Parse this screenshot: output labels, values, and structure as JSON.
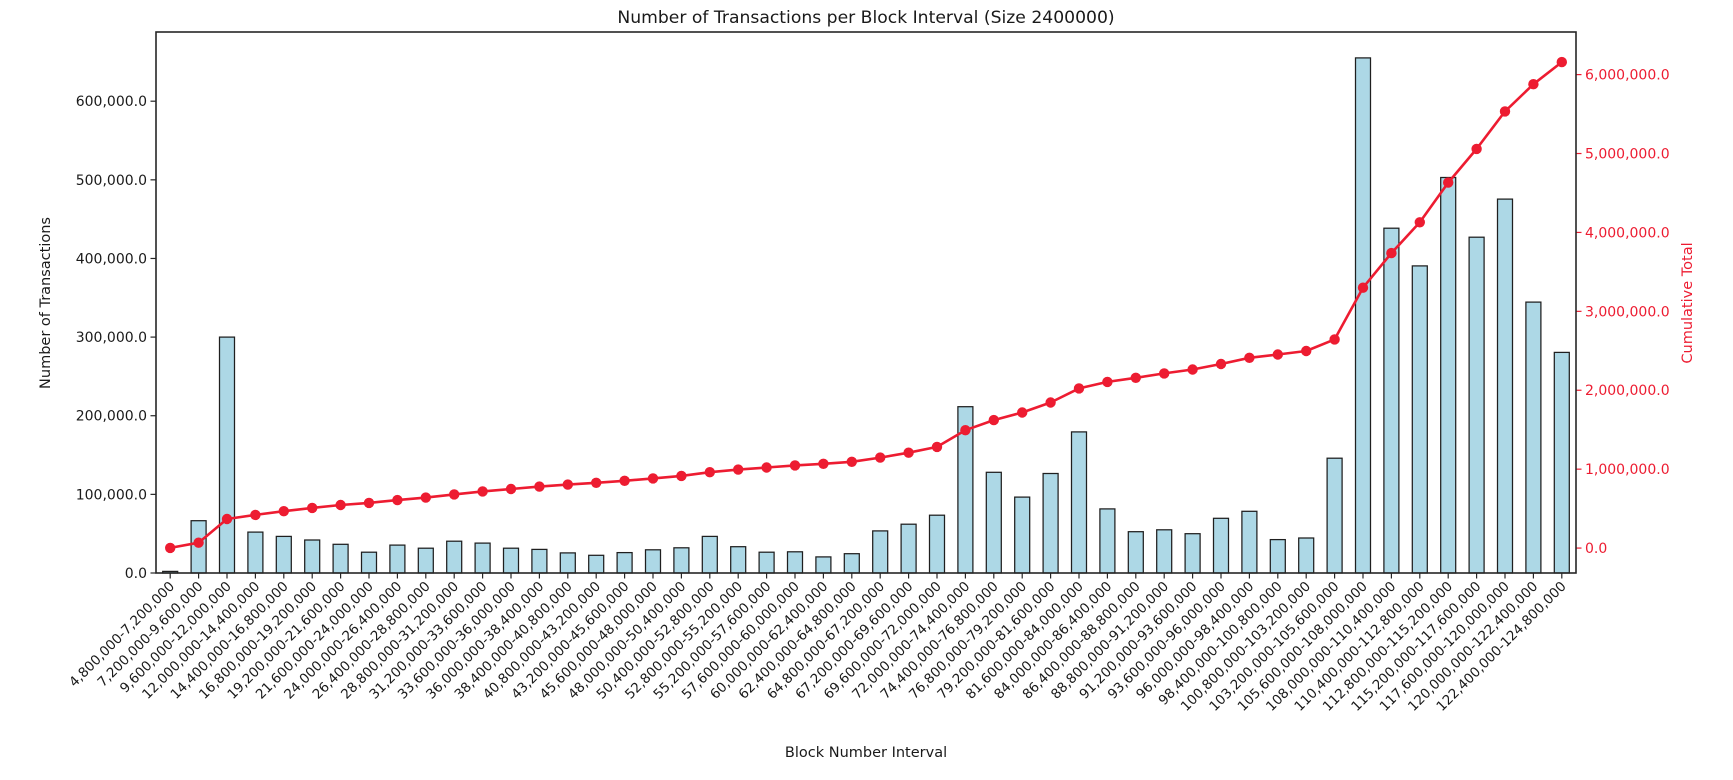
{
  "chart_data": {
    "type": "bar",
    "title": "Number of Transactions per Block Interval (Size 2400000)",
    "xlabel": "Block Number Interval",
    "ylabel_left": "Number of Transactions",
    "ylabel_right": "Cumulative Total",
    "grid": false,
    "legend": "none",
    "background": "#ffffff",
    "x_tick_rotation": 45,
    "bar_fill": "#ADD8E6",
    "bar_edge": "#1f1f1f",
    "line_color": "#ed1c31",
    "axis_color": "#262626",
    "ylim_left": [
      0,
      688000
    ],
    "ylim_right": [
      -316000,
      6540000
    ],
    "categories": [
      "4,800,000-7,200,000",
      "7,200,000-9,600,000",
      "9,600,000-12,000,000",
      "12,000,000-14,400,000",
      "14,400,000-16,800,000",
      "16,800,000-19,200,000",
      "19,200,000-21,600,000",
      "21,600,000-24,000,000",
      "24,000,000-26,400,000",
      "26,400,000-28,800,000",
      "28,800,000-31,200,000",
      "31,200,000-33,600,000",
      "33,600,000-36,000,000",
      "36,000,000-38,400,000",
      "38,400,000-40,800,000",
      "40,800,000-43,200,000",
      "43,200,000-45,600,000",
      "45,600,000-48,000,000",
      "48,000,000-50,400,000",
      "50,400,000-52,800,000",
      "52,800,000-55,200,000",
      "55,200,000-57,600,000",
      "57,600,000-60,000,000",
      "60,000,000-62,400,000",
      "62,400,000-64,800,000",
      "64,800,000-67,200,000",
      "67,200,000-69,600,000",
      "69,600,000-72,000,000",
      "72,000,000-74,400,000",
      "74,400,000-76,800,000",
      "76,800,000-79,200,000",
      "79,200,000-81,600,000",
      "81,600,000-84,000,000",
      "84,000,000-86,400,000",
      "86,400,000-88,800,000",
      "88,800,000-91,200,000",
      "91,200,000-93,600,000",
      "93,600,000-96,000,000",
      "96,000,000-98,400,000",
      "98,400,000-100,800,000",
      "100,800,000-103,200,000",
      "103,200,000-105,600,000",
      "105,600,000-108,000,000",
      "108,000,000-110,400,000",
      "110,400,000-112,800,000",
      "112,800,000-115,200,000",
      "115,200,000-117,600,000",
      "117,600,000-120,000,000",
      "120,000,000-122,400,000",
      "122,400,000-124,800,000"
    ],
    "series": [
      {
        "name": "Number of Transactions",
        "type": "bar",
        "axis": "left",
        "color": "#ADD8E6",
        "values": [
          2000,
          66500,
          300000,
          52000,
          46500,
          42000,
          36500,
          26500,
          35500,
          31500,
          40500,
          38000,
          31500,
          30000,
          25500,
          22500,
          26000,
          29500,
          32000,
          46500,
          33500,
          26500,
          27000,
          20500,
          24500,
          53500,
          62000,
          73500,
          211500,
          128000,
          96500,
          126500,
          179500,
          81500,
          52500,
          55000,
          50000,
          69500,
          78500,
          42500,
          44500,
          146000,
          655000,
          438500,
          390500,
          503000,
          427000,
          475500,
          344500,
          280500
        ]
      },
      {
        "name": "Cumulative Total",
        "type": "line",
        "axis": "right",
        "color": "#ed1c31",
        "marker": "circle",
        "values": [
          2000,
          68500,
          368500,
          420500,
          467000,
          509000,
          545500,
          572000,
          607500,
          639000,
          679500,
          717500,
          749000,
          779000,
          804500,
          827000,
          853000,
          882500,
          914500,
          961000,
          994500,
          1021000,
          1048000,
          1068500,
          1093000,
          1146500,
          1208500,
          1282000,
          1493500,
          1621500,
          1718000,
          1844500,
          2024000,
          2105500,
          2158000,
          2213000,
          2263000,
          2332500,
          2411000,
          2453500,
          2498000,
          2644000,
          3299000,
          3737500,
          4128000,
          4631000,
          5058000,
          5533500,
          5878000,
          6158500
        ]
      }
    ],
    "y_left_ticks": {
      "values": [
        0,
        100000,
        200000,
        300000,
        400000,
        500000,
        600000
      ],
      "labels": [
        "0.0",
        "100,000.0",
        "200,000.0",
        "300,000.0",
        "400,000.0",
        "500,000.0",
        "600,000.0"
      ]
    },
    "y_right_ticks": {
      "values": [
        0,
        1000000,
        2000000,
        3000000,
        4000000,
        5000000,
        6000000
      ],
      "labels": [
        "0.0",
        "1,000,000.0",
        "2,000,000.0",
        "3,000,000.0",
        "4,000,000.0",
        "5,000,000.0",
        "6,000,000.0"
      ]
    }
  }
}
